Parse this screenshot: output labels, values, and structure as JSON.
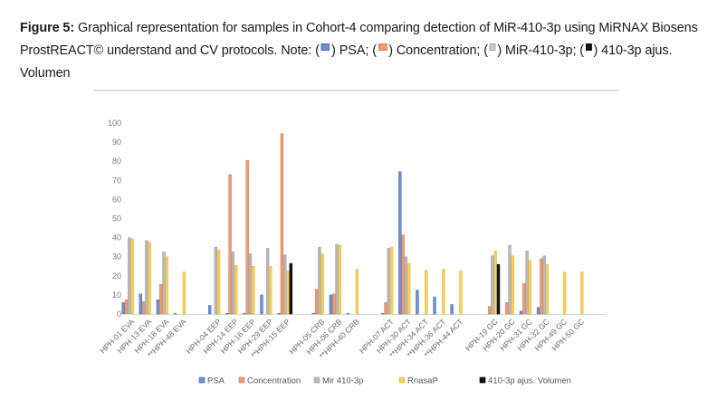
{
  "caption": {
    "label": "Figure 5:",
    "text_1": " Graphical representation for samples in Cohort-4 comparing detection of MiR-410-3p using MiRNAX Biosens ProstREACT© understand and CV protocols. Note: (",
    "text_2": ") PSA; (",
    "text_3": ") Concentration; (",
    "text_4": ") MiR-410-3p; (",
    "text_5": ") 410-3p ajus. Volumen"
  },
  "colors": {
    "PSA": "#6f8fd0",
    "Concentration": "#ed9b74",
    "Mir 410-3p": "#b8b8b8",
    "RnasaP": "#f6cf62",
    "410-3p ajus. Volumen": "#0d1520"
  },
  "chart_data": {
    "type": "bar",
    "title": "",
    "xlabel": "",
    "ylabel": "",
    "ylim": [
      0,
      100
    ],
    "yticks": [
      0,
      10,
      20,
      30,
      40,
      50,
      60,
      70,
      80,
      90,
      100
    ],
    "grid": false,
    "legend_position": "bottom",
    "categories": [
      "HPH-01 EVA",
      "HPH-13 EVA",
      "HPH-18 EVA",
      "**HPH-48 EVA",
      "",
      "HPH-04 EEP",
      "HPH-14 EEP",
      "HPH-16 EEP",
      "HPH-29 EEP",
      "**HPH-15 EEP",
      "",
      "HPH-05 CRB",
      "HPH-06 CRB",
      "**HPH-40 CRB",
      "",
      "HPH-07 ACT",
      "HPH-30 ACT",
      "**HPH-34 ACT",
      "**HPH-36 ACT",
      "**HPH-44 ACT",
      "",
      "HPH-19 GC",
      "HPH-20 GC",
      "HPH-31 GC",
      "HPH-32 GC",
      "HPH-49 GC",
      "HPH-50 GC"
    ],
    "series": [
      {
        "name": "PSA",
        "values": [
          6,
          10.5,
          7.5,
          0.3,
          null,
          4.5,
          0.3,
          0.3,
          10,
          0.3,
          null,
          0.3,
          10,
          0.3,
          null,
          0.3,
          74.5,
          12.5,
          9,
          5,
          null,
          0,
          0,
          1.5,
          3.5,
          0,
          0
        ]
      },
      {
        "name": "Concentration",
        "values": [
          7.5,
          6.5,
          15.5,
          0,
          null,
          0,
          73,
          80.5,
          0,
          94.5,
          null,
          13,
          10.5,
          0,
          null,
          6,
          41.5,
          0,
          0,
          0,
          null,
          4,
          6,
          16,
          29,
          0,
          0
        ]
      },
      {
        "name": "Mir 410-3p",
        "values": [
          40,
          38.5,
          32.5,
          0,
          null,
          35,
          32.5,
          31.5,
          34.5,
          31,
          null,
          35,
          36.5,
          0,
          null,
          34.5,
          30,
          0,
          0,
          0,
          null,
          30.5,
          36,
          33,
          30.5,
          0,
          0
        ]
      },
      {
        "name": "RnasaP",
        "values": [
          39.5,
          37.5,
          30,
          22,
          null,
          33.5,
          25.5,
          25,
          25,
          22.5,
          null,
          31.5,
          36,
          23.5,
          null,
          35,
          26.5,
          23,
          23.5,
          22.5,
          null,
          33,
          30.5,
          28,
          26,
          22,
          22
        ]
      },
      {
        "name": "410-3p ajus. Volumen",
        "values": [
          0,
          0,
          0,
          0,
          null,
          0,
          0,
          0,
          0,
          26.5,
          null,
          0,
          0,
          0,
          null,
          0,
          0,
          0,
          0,
          0,
          null,
          26,
          0,
          0,
          0,
          0,
          0
        ]
      }
    ]
  }
}
